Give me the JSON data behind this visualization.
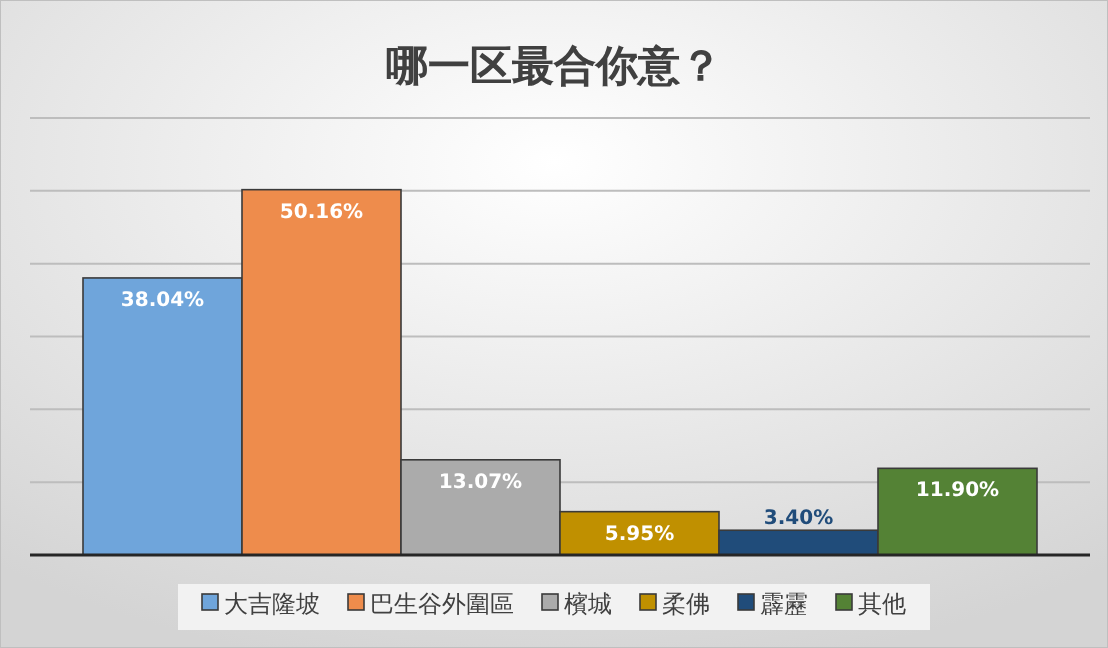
{
  "chart_data": {
    "type": "bar",
    "title": "哪一区最合你意？",
    "categories": [
      null
    ],
    "ylim": [
      0,
      60
    ],
    "yticks": [
      {
        "value": 0,
        "label": null
      },
      {
        "value": 10,
        "label": null
      },
      {
        "value": 20,
        "label": null
      },
      {
        "value": 30,
        "label": null
      },
      {
        "value": 40,
        "label": null
      },
      {
        "value": 50,
        "label": null
      },
      {
        "value": 60,
        "label": null
      }
    ],
    "grid": "y",
    "legend": "bottom",
    "series": [
      {
        "name": "大吉隆坡",
        "color": "#6fa5db",
        "values": [
          38.04
        ],
        "value_labels": [
          "38.04%"
        ]
      },
      {
        "name": "巴生谷外圍區",
        "color": "#ee8c4c",
        "values": [
          50.16
        ],
        "value_labels": [
          "50.16%"
        ]
      },
      {
        "name": "檳城",
        "color": "#ababab",
        "values": [
          13.07
        ],
        "value_labels": [
          "13.07%"
        ]
      },
      {
        "name": "柔佛",
        "color": "#c09000",
        "values": [
          5.95
        ],
        "value_labels": [
          "5.95%"
        ]
      },
      {
        "name": "霹靂",
        "color": "#204c7a",
        "values": [
          3.4
        ],
        "value_labels": [
          "3.40%"
        ]
      },
      {
        "name": "其他",
        "color": "#548235",
        "values": [
          11.9
        ],
        "value_labels": [
          "11.90%"
        ]
      }
    ]
  }
}
